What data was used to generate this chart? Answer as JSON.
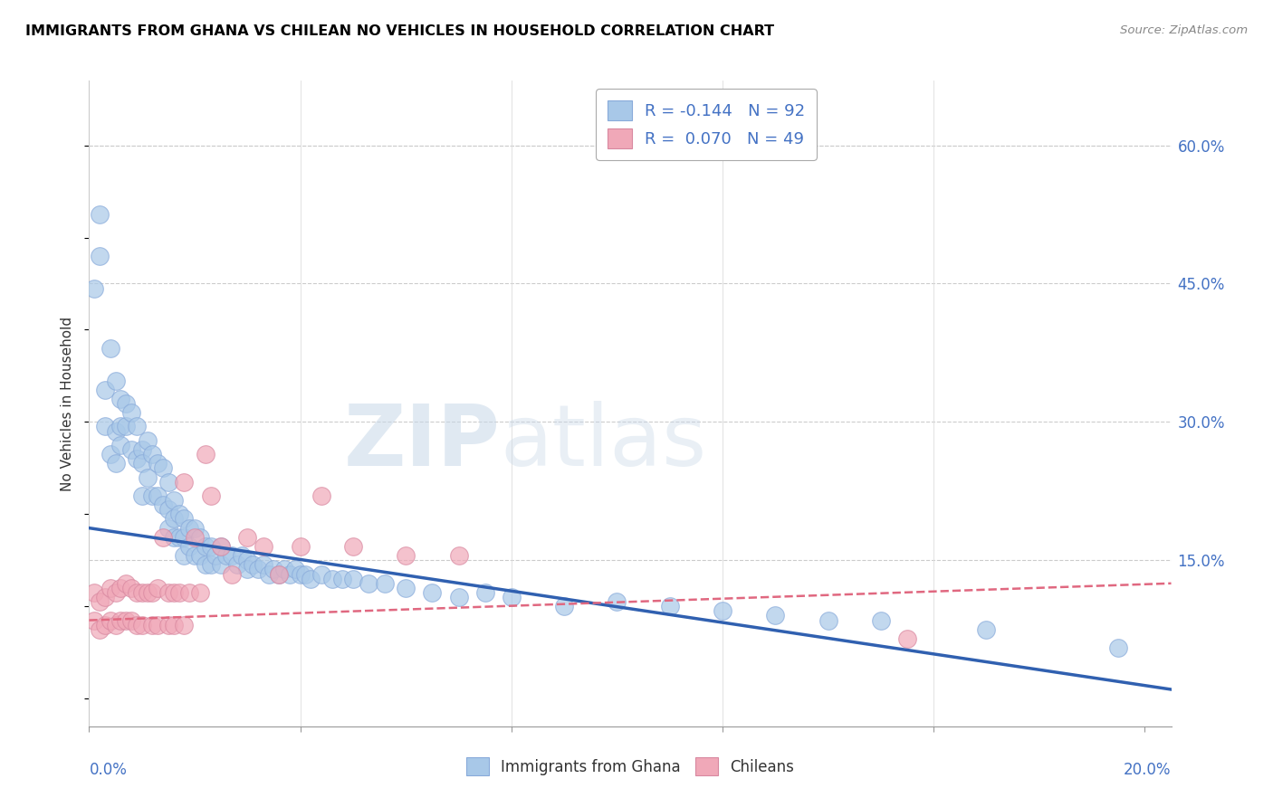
{
  "title": "IMMIGRANTS FROM GHANA VS CHILEAN NO VEHICLES IN HOUSEHOLD CORRELATION CHART",
  "source": "Source: ZipAtlas.com",
  "ylabel": "No Vehicles in Household",
  "right_ytick_vals": [
    0.15,
    0.3,
    0.45,
    0.6
  ],
  "right_ytick_labels": [
    "15.0%",
    "30.0%",
    "45.0%",
    "60.0%"
  ],
  "ghana_color": "#A8C8E8",
  "chilean_color": "#F0A8B8",
  "ghana_line_color": "#3060B0",
  "chilean_line_color": "#E06880",
  "legend_ghana_r": "-0.144",
  "legend_ghana_n": "92",
  "legend_chilean_r": "0.070",
  "legend_chilean_n": "49",
  "xlim": [
    0.0,
    0.205
  ],
  "ylim": [
    -0.03,
    0.67
  ],
  "ghana_trend_x0": 0.0,
  "ghana_trend_y0": 0.185,
  "ghana_trend_x1": 0.205,
  "ghana_trend_y1": 0.01,
  "chilean_trend_x0": 0.0,
  "chilean_trend_y0": 0.085,
  "chilean_trend_x1": 0.205,
  "chilean_trend_y1": 0.125,
  "ghana_scatter_x": [
    0.001,
    0.002,
    0.002,
    0.003,
    0.003,
    0.004,
    0.004,
    0.005,
    0.005,
    0.005,
    0.006,
    0.006,
    0.006,
    0.007,
    0.007,
    0.008,
    0.008,
    0.009,
    0.009,
    0.01,
    0.01,
    0.01,
    0.011,
    0.011,
    0.012,
    0.012,
    0.013,
    0.013,
    0.014,
    0.014,
    0.015,
    0.015,
    0.015,
    0.016,
    0.016,
    0.016,
    0.017,
    0.017,
    0.018,
    0.018,
    0.018,
    0.019,
    0.019,
    0.02,
    0.02,
    0.021,
    0.021,
    0.022,
    0.022,
    0.023,
    0.023,
    0.024,
    0.025,
    0.025,
    0.026,
    0.027,
    0.028,
    0.029,
    0.03,
    0.03,
    0.031,
    0.032,
    0.033,
    0.034,
    0.035,
    0.036,
    0.037,
    0.038,
    0.039,
    0.04,
    0.041,
    0.042,
    0.044,
    0.046,
    0.048,
    0.05,
    0.053,
    0.056,
    0.06,
    0.065,
    0.07,
    0.075,
    0.08,
    0.09,
    0.1,
    0.11,
    0.12,
    0.13,
    0.14,
    0.15,
    0.17,
    0.195
  ],
  "ghana_scatter_y": [
    0.445,
    0.525,
    0.48,
    0.335,
    0.295,
    0.38,
    0.265,
    0.345,
    0.29,
    0.255,
    0.325,
    0.295,
    0.275,
    0.32,
    0.295,
    0.31,
    0.27,
    0.295,
    0.26,
    0.27,
    0.255,
    0.22,
    0.28,
    0.24,
    0.265,
    0.22,
    0.255,
    0.22,
    0.25,
    0.21,
    0.235,
    0.205,
    0.185,
    0.215,
    0.195,
    0.175,
    0.2,
    0.175,
    0.195,
    0.175,
    0.155,
    0.185,
    0.165,
    0.185,
    0.155,
    0.175,
    0.155,
    0.165,
    0.145,
    0.165,
    0.145,
    0.155,
    0.165,
    0.145,
    0.155,
    0.155,
    0.145,
    0.155,
    0.15,
    0.14,
    0.145,
    0.14,
    0.145,
    0.135,
    0.14,
    0.135,
    0.14,
    0.135,
    0.14,
    0.135,
    0.135,
    0.13,
    0.135,
    0.13,
    0.13,
    0.13,
    0.125,
    0.125,
    0.12,
    0.115,
    0.11,
    0.115,
    0.11,
    0.1,
    0.105,
    0.1,
    0.095,
    0.09,
    0.085,
    0.085,
    0.075,
    0.055
  ],
  "chilean_scatter_x": [
    0.001,
    0.001,
    0.002,
    0.002,
    0.003,
    0.003,
    0.004,
    0.004,
    0.005,
    0.005,
    0.006,
    0.006,
    0.007,
    0.007,
    0.008,
    0.008,
    0.009,
    0.009,
    0.01,
    0.01,
    0.011,
    0.012,
    0.012,
    0.013,
    0.013,
    0.014,
    0.015,
    0.015,
    0.016,
    0.016,
    0.017,
    0.018,
    0.018,
    0.019,
    0.02,
    0.021,
    0.022,
    0.023,
    0.025,
    0.027,
    0.03,
    0.033,
    0.036,
    0.04,
    0.044,
    0.05,
    0.06,
    0.07,
    0.155
  ],
  "chilean_scatter_y": [
    0.115,
    0.085,
    0.105,
    0.075,
    0.11,
    0.08,
    0.12,
    0.085,
    0.115,
    0.08,
    0.12,
    0.085,
    0.125,
    0.085,
    0.12,
    0.085,
    0.115,
    0.08,
    0.115,
    0.08,
    0.115,
    0.115,
    0.08,
    0.12,
    0.08,
    0.175,
    0.115,
    0.08,
    0.115,
    0.08,
    0.115,
    0.235,
    0.08,
    0.115,
    0.175,
    0.115,
    0.265,
    0.22,
    0.165,
    0.135,
    0.175,
    0.165,
    0.135,
    0.165,
    0.22,
    0.165,
    0.155,
    0.155,
    0.065
  ]
}
